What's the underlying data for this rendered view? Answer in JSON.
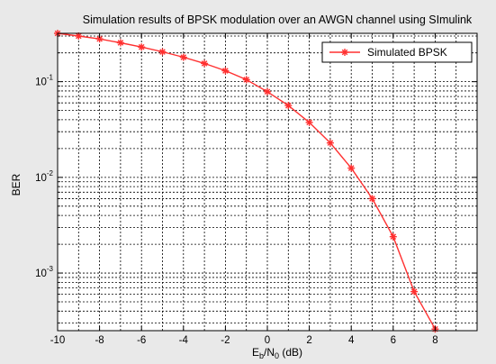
{
  "chart_data": {
    "type": "line",
    "title": "Simulation results of BPSK modulation over an AWGN channel using SImulink",
    "xlabel_main": "E",
    "xlabel_sub1": "b",
    "xlabel_mid": "/N",
    "xlabel_sub2": "0",
    "xlabel_unit": " (dB)",
    "ylabel": "BER",
    "x_ticks": [
      "-10",
      "-8",
      "-6",
      "-4",
      "-2",
      "0",
      "2",
      "4",
      "6",
      "8"
    ],
    "x_tick_values": [
      -10,
      -8,
      -6,
      -4,
      -2,
      0,
      2,
      4,
      6,
      8
    ],
    "xlim": [
      -10,
      10
    ],
    "y_scale": "log",
    "ylim": [
      0.00025,
      0.32
    ],
    "y_ticks": [
      {
        "value": 0.1,
        "base": "10",
        "exp": "-1"
      },
      {
        "value": 0.01,
        "base": "10",
        "exp": "-2"
      },
      {
        "value": 0.001,
        "base": "10",
        "exp": "-3"
      }
    ],
    "grid": true,
    "legend_position": "top-right",
    "series": [
      {
        "name": "Simulated BPSK",
        "color": "#ff3030",
        "marker": "asterisk",
        "x": [
          -10,
          -9,
          -8,
          -7,
          -6,
          -5,
          -4,
          -3,
          -2,
          -1,
          0,
          1,
          2,
          3,
          4,
          5,
          6,
          7,
          8
        ],
        "y": [
          0.32,
          0.3,
          0.28,
          0.255,
          0.23,
          0.205,
          0.18,
          0.155,
          0.13,
          0.105,
          0.0786,
          0.0563,
          0.0375,
          0.0229,
          0.0125,
          0.006,
          0.0024,
          0.00064,
          0.00026
        ]
      }
    ]
  }
}
